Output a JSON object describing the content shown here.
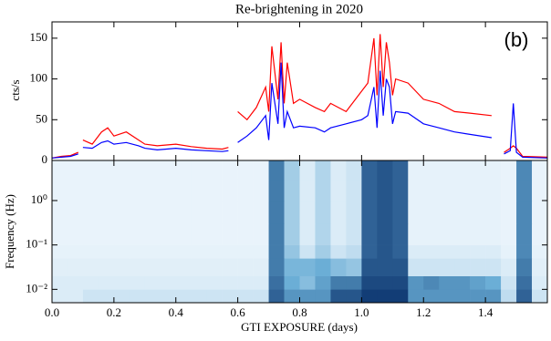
{
  "chart_data": [
    {
      "type": "line",
      "title": "Re-brightening in 2020",
      "annotation": "(b)",
      "ylabel": "cts/s",
      "x": [
        0,
        0.03,
        0.06,
        0.085,
        0.09,
        0.1,
        0.13,
        0.16,
        0.18,
        0.2,
        0.24,
        0.28,
        0.3,
        0.34,
        0.4,
        0.45,
        0.5,
        0.55,
        0.57,
        0.58,
        0.6,
        0.63,
        0.66,
        0.69,
        0.7,
        0.71,
        0.73,
        0.74,
        0.75,
        0.76,
        0.78,
        0.8,
        0.85,
        0.88,
        0.9,
        0.95,
        1.0,
        1.02,
        1.04,
        1.05,
        1.06,
        1.07,
        1.08,
        1.09,
        1.1,
        1.11,
        1.15,
        1.2,
        1.25,
        1.3,
        1.35,
        1.42,
        1.44,
        1.46,
        1.48,
        1.49,
        1.5,
        1.52,
        1.6
      ],
      "series": [
        {
          "color": "#ff0000",
          "values": [
            3,
            5,
            6,
            10,
            null,
            25,
            20,
            35,
            40,
            30,
            35,
            25,
            20,
            18,
            20,
            17,
            15,
            14,
            16,
            null,
            60,
            50,
            65,
            90,
            60,
            140,
            75,
            145,
            70,
            120,
            70,
            75,
            65,
            60,
            70,
            60,
            85,
            95,
            150,
            80,
            155,
            90,
            145,
            120,
            80,
            100,
            95,
            75,
            70,
            60,
            58,
            55,
            null,
            10,
            15,
            18,
            15,
            5,
            4
          ]
        },
        {
          "color": "#0000ff",
          "values": [
            3,
            4,
            5,
            8,
            null,
            16,
            15,
            22,
            24,
            20,
            22,
            18,
            15,
            13,
            15,
            13,
            12,
            11,
            12,
            null,
            22,
            30,
            40,
            55,
            25,
            95,
            45,
            120,
            40,
            60,
            40,
            42,
            40,
            35,
            40,
            45,
            50,
            55,
            90,
            40,
            110,
            55,
            100,
            90,
            45,
            60,
            58,
            45,
            40,
            35,
            32,
            28,
            null,
            8,
            12,
            70,
            10,
            4,
            3
          ]
        }
      ],
      "xlim": [
        0,
        1.6
      ],
      "ylim": [
        0,
        170
      ],
      "yticks": [
        0,
        50,
        100,
        150
      ]
    },
    {
      "type": "heatmap",
      "xlabel": "GTI EXPOSURE (days)",
      "ylabel": "Frequency (Hz)",
      "x_bins": [
        0,
        0.05,
        0.1,
        0.15,
        0.2,
        0.25,
        0.3,
        0.35,
        0.4,
        0.45,
        0.5,
        0.55,
        0.6,
        0.65,
        0.7,
        0.75,
        0.8,
        0.85,
        0.9,
        0.95,
        1.0,
        1.05,
        1.1,
        1.15,
        1.2,
        1.25,
        1.3,
        1.35,
        1.4,
        1.45,
        1.5,
        1.55,
        1.6
      ],
      "y_bins": [
        0.005,
        0.01,
        0.02,
        0.05,
        0.1,
        0.3,
        1,
        3,
        8
      ],
      "z": [
        [
          0.1,
          0.1,
          0.15,
          0.15,
          0.15,
          0.15,
          0.15,
          0.15,
          0.15,
          0.15,
          0.15,
          0.15,
          0.15,
          0.15,
          0.8,
          0.6,
          0.6,
          0.6,
          0.85,
          0.85,
          0.95,
          0.95,
          0.95,
          0.6,
          0.6,
          0.6,
          0.6,
          0.6,
          0.6,
          0.2,
          0.8,
          0.15
        ],
        [
          0.1,
          0.1,
          0.1,
          0.1,
          0.1,
          0.1,
          0.1,
          0.1,
          0.1,
          0.1,
          0.1,
          0.1,
          0.1,
          0.1,
          0.75,
          0.5,
          0.4,
          0.55,
          0.7,
          0.7,
          0.9,
          0.9,
          0.9,
          0.6,
          0.65,
          0.6,
          0.6,
          0.55,
          0.5,
          0.15,
          0.75,
          0.1
        ],
        [
          0.08,
          0.08,
          0.08,
          0.08,
          0.08,
          0.08,
          0.08,
          0.08,
          0.08,
          0.08,
          0.08,
          0.08,
          0.08,
          0.08,
          0.7,
          0.45,
          0.45,
          0.5,
          0.4,
          0.35,
          0.85,
          0.85,
          0.85,
          0.15,
          0.15,
          0.15,
          0.15,
          0.15,
          0.15,
          0.1,
          0.7,
          0.08
        ],
        [
          0.06,
          0.06,
          0.06,
          0.06,
          0.06,
          0.06,
          0.06,
          0.06,
          0.06,
          0.06,
          0.06,
          0.06,
          0.06,
          0.06,
          0.7,
          0.35,
          0.15,
          0.3,
          0.15,
          0.2,
          0.8,
          0.85,
          0.8,
          0.1,
          0.1,
          0.1,
          0.1,
          0.1,
          0.1,
          0.06,
          0.65,
          0.06
        ],
        [
          0.05,
          0.05,
          0.05,
          0.05,
          0.05,
          0.05,
          0.05,
          0.05,
          0.05,
          0.05,
          0.05,
          0.05,
          0.05,
          0.05,
          0.7,
          0.3,
          0.1,
          0.25,
          0.1,
          0.15,
          0.8,
          0.85,
          0.8,
          0.06,
          0.06,
          0.06,
          0.06,
          0.06,
          0.06,
          0.05,
          0.65,
          0.05
        ],
        [
          0.05,
          0.05,
          0.05,
          0.05,
          0.05,
          0.05,
          0.05,
          0.05,
          0.05,
          0.05,
          0.05,
          0.05,
          0.05,
          0.05,
          0.7,
          0.3,
          0.1,
          0.25,
          0.1,
          0.15,
          0.8,
          0.85,
          0.8,
          0.06,
          0.06,
          0.06,
          0.06,
          0.06,
          0.06,
          0.05,
          0.65,
          0.05
        ],
        [
          0.05,
          0.05,
          0.05,
          0.05,
          0.05,
          0.05,
          0.05,
          0.05,
          0.05,
          0.05,
          0.05,
          0.05,
          0.05,
          0.05,
          0.7,
          0.3,
          0.1,
          0.25,
          0.1,
          0.15,
          0.8,
          0.85,
          0.8,
          0.06,
          0.06,
          0.06,
          0.06,
          0.06,
          0.06,
          0.05,
          0.65,
          0.05
        ],
        [
          0.05,
          0.05,
          0.05,
          0.05,
          0.05,
          0.05,
          0.05,
          0.05,
          0.05,
          0.05,
          0.05,
          0.05,
          0.05,
          0.05,
          0.7,
          0.3,
          0.1,
          0.25,
          0.1,
          0.15,
          0.8,
          0.85,
          0.8,
          0.06,
          0.06,
          0.06,
          0.06,
          0.06,
          0.06,
          0.05,
          0.65,
          0.05
        ]
      ],
      "colormap": [
        "#f7fbff",
        "#6baed6",
        "#08306b"
      ],
      "xlim": [
        0,
        1.6
      ],
      "ylim": [
        0.005,
        8
      ],
      "log_y": true,
      "yticks": [
        {
          "value": 0.01,
          "label": "10⁻²"
        },
        {
          "value": 0.1,
          "label": "10⁻¹"
        },
        {
          "value": 1,
          "label": "10⁰"
        }
      ],
      "xticks": [
        {
          "value": 0,
          "label": "0.0"
        },
        0.2,
        0.4,
        0.6,
        0.8,
        {
          "value": 1,
          "label": "1.0"
        },
        1.2,
        1.4
      ]
    }
  ]
}
